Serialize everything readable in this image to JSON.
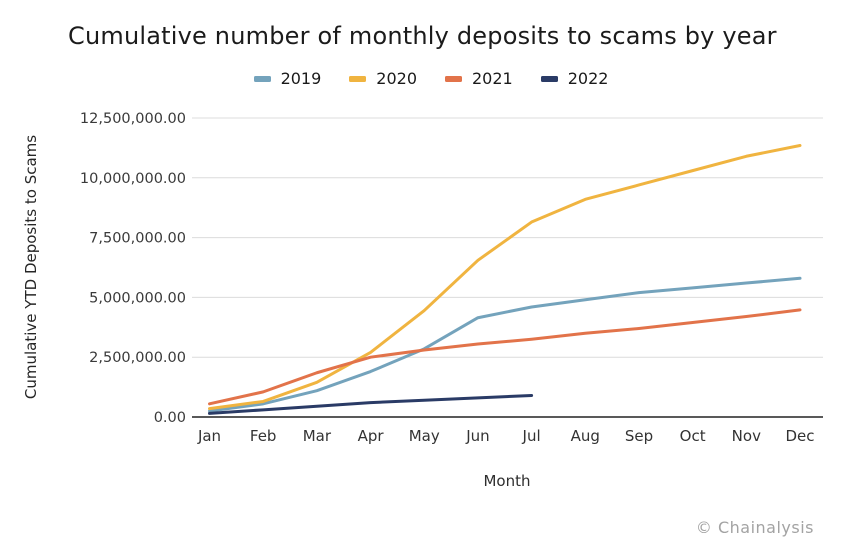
{
  "title": "Cumulative number of monthly deposits to scams by year",
  "footer": "© Chainalysis",
  "chart_data": {
    "type": "line",
    "title": "Cumulative number of monthly deposits to scams by year",
    "xlabel": "Month",
    "ylabel": "Cumulative YTD Deposits to Scams",
    "categories": [
      "Jan",
      "Feb",
      "Mar",
      "Apr",
      "May",
      "Jun",
      "Jul",
      "Aug",
      "Sep",
      "Oct",
      "Nov",
      "Dec"
    ],
    "ylim": [
      0,
      12500000
    ],
    "y_ticks": [
      0,
      2500000,
      5000000,
      7500000,
      10000000,
      12500000
    ],
    "y_tick_labels": [
      "0.00",
      "2,500,000.00",
      "5,000,000.00",
      "7,500,000.00",
      "10,000,000.00",
      "12,500,000.00"
    ],
    "grid": "horizontal",
    "legend_position": "top",
    "series": [
      {
        "name": "2019",
        "color": "#74A3BC",
        "values": [
          250000,
          550000,
          1100000,
          1900000,
          2850000,
          4150000,
          4600000,
          4900000,
          5200000,
          5400000,
          5600000,
          5800000
        ]
      },
      {
        "name": "2020",
        "color": "#F0B440",
        "values": [
          350000,
          650000,
          1450000,
          2700000,
          4450000,
          6550000,
          8150000,
          9100000,
          9700000,
          10300000,
          10900000,
          11350000
        ]
      },
      {
        "name": "2021",
        "color": "#E2734A",
        "values": [
          550000,
          1050000,
          1850000,
          2500000,
          2800000,
          3050000,
          3250000,
          3500000,
          3700000,
          3950000,
          4200000,
          4480000
        ]
      },
      {
        "name": "2022",
        "color": "#2A3B66",
        "values": [
          150000,
          300000,
          450000,
          600000,
          700000,
          800000,
          900000
        ]
      }
    ]
  }
}
